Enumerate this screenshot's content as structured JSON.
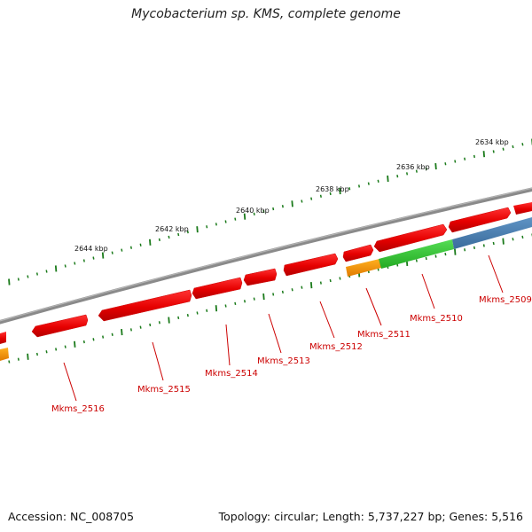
{
  "title": "Mycobacterium sp. KMS, complete genome",
  "footer": {
    "accession": "Accession: NC_008705",
    "summary": "Topology: circular; Length: 5,737,227 bp; Genes: 5,516"
  },
  "colors": {
    "backbone": "#7f7f7f",
    "tick": "#1a7a1a",
    "label": "#cc0000",
    "gene_red": "#ee1111",
    "gene_orange": "#ff9900",
    "gene_green": "#33cc33",
    "gene_blue": "#4a7fb0"
  },
  "tick_labels": [
    "2634 kbp",
    "2636 kbp",
    "2638 kbp",
    "2640 kbp",
    "2642 kbp",
    "2644 kbp"
  ],
  "gene_labels": [
    "Mkms_2509",
    "Mkms_2510",
    "Mkms_2511",
    "Mkms_2512",
    "Mkms_2513",
    "Mkms_2514",
    "Mkms_2515",
    "Mkms_2516"
  ]
}
